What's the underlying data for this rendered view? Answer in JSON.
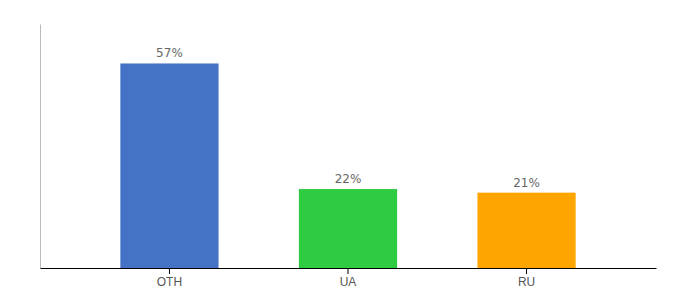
{
  "chart_data": {
    "type": "bar",
    "categories": [
      "OTH",
      "UA",
      "RU"
    ],
    "values": [
      57,
      22,
      21
    ],
    "value_labels": [
      "57%",
      "22%",
      "21%"
    ],
    "colors": [
      "#4472C4",
      "#2ECC40",
      "#FFA500"
    ],
    "ylim": [
      0,
      68
    ],
    "data_labels": true,
    "tick_labels": "x",
    "grid": false
  }
}
